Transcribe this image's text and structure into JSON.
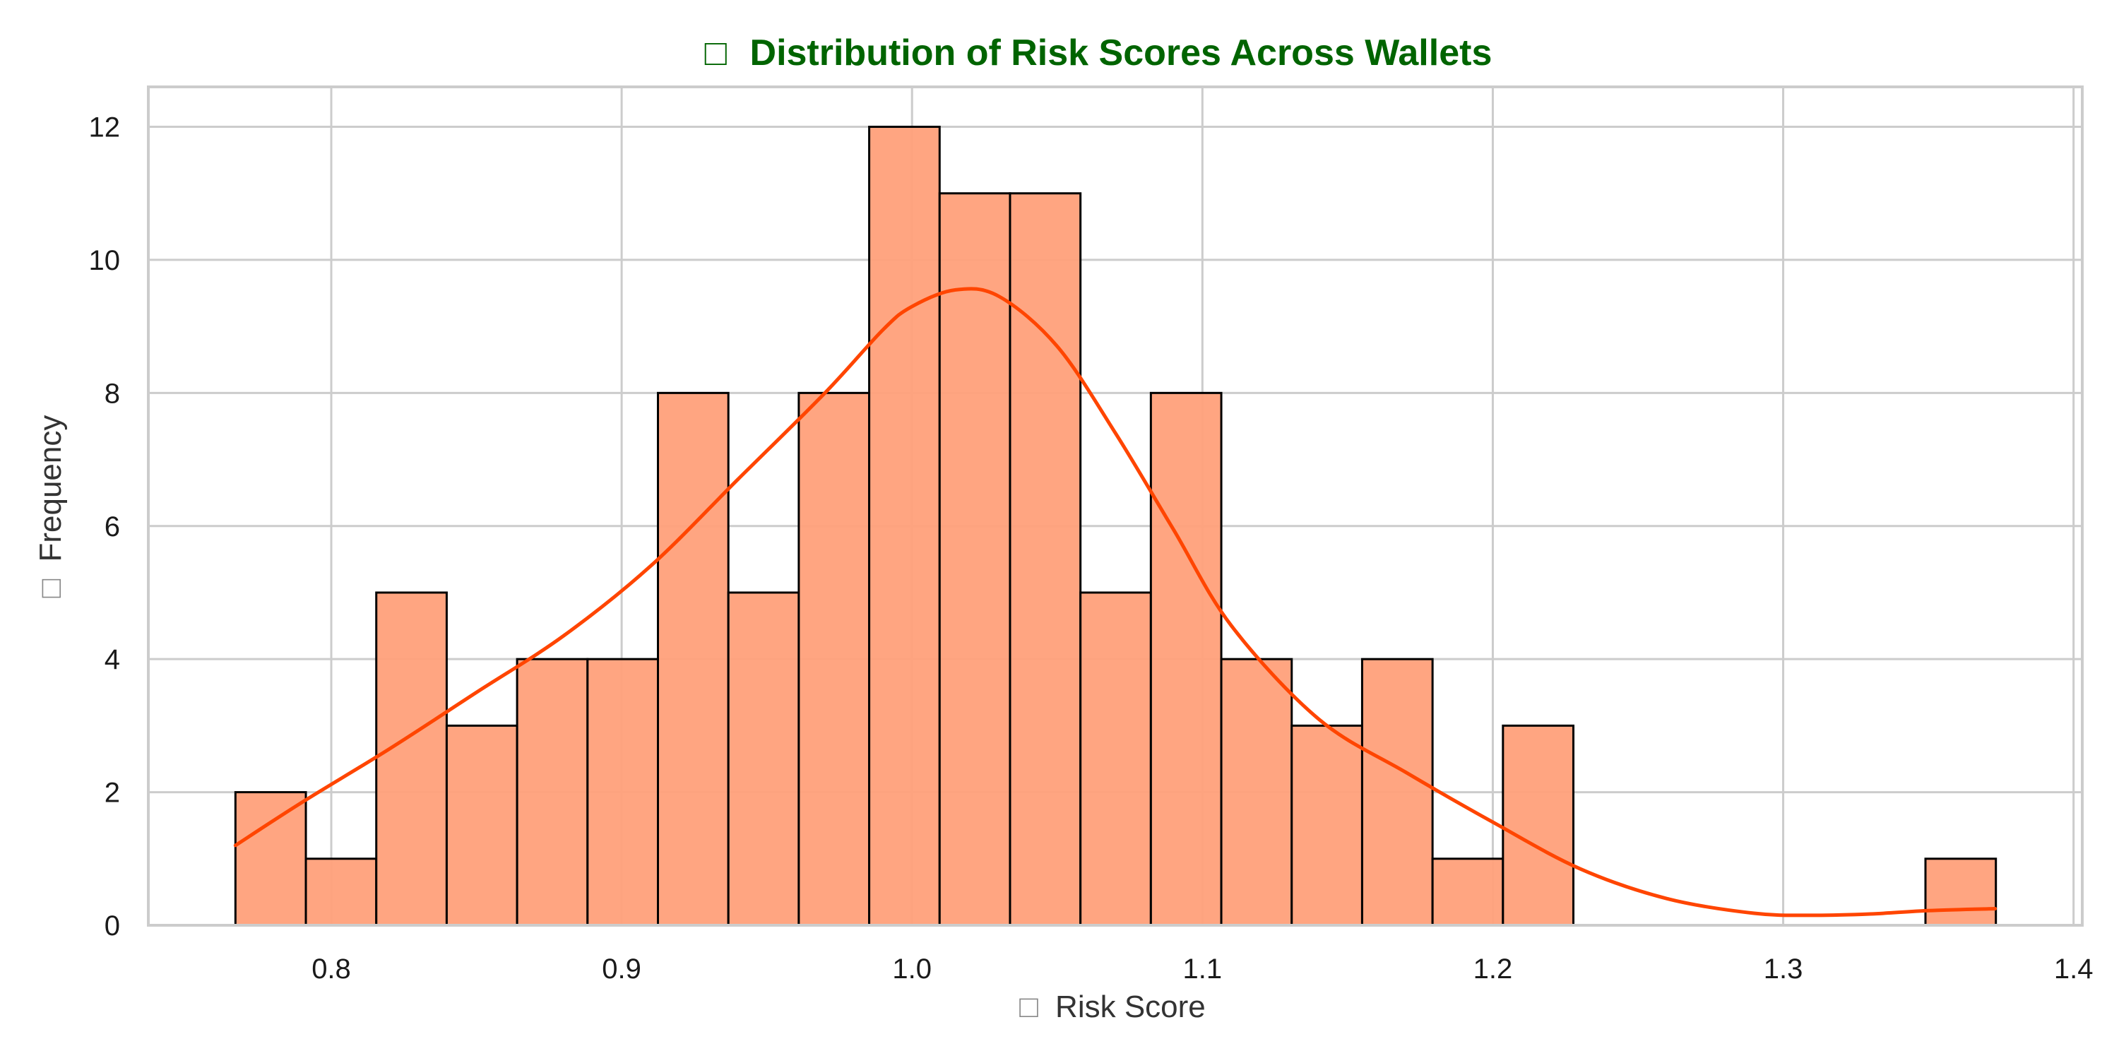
{
  "chart_data": {
    "type": "bar",
    "subtype": "histogram-with-kde",
    "title": "Distribution of Risk Scores Across Wallets",
    "title_icon": "□",
    "xlabel": "Risk Score",
    "xlabel_icon": "□",
    "ylabel": "Frequency",
    "ylabel_icon": "□",
    "xlim": [
      0.737,
      1.403
    ],
    "ylim": [
      0,
      12.6
    ],
    "xticks": [
      0.8,
      0.9,
      1.0,
      1.1,
      1.2,
      1.3,
      1.4
    ],
    "xtick_labels": [
      "0.8",
      "0.9",
      "1.0",
      "1.1",
      "1.2",
      "1.3",
      "1.4"
    ],
    "yticks": [
      0,
      2,
      4,
      6,
      8,
      10,
      12
    ],
    "ytick_labels": [
      "0",
      "2",
      "4",
      "6",
      "8",
      "10",
      "12"
    ],
    "grid": true,
    "bin_start": 0.767,
    "bin_width": 0.02425,
    "values": [
      2,
      1,
      5,
      3,
      4,
      4,
      8,
      5,
      8,
      12,
      11,
      11,
      5,
      8,
      4,
      3,
      4,
      1,
      3,
      0,
      0,
      0,
      0,
      0,
      1
    ],
    "kde": {
      "x": [
        0.767,
        0.79,
        0.82,
        0.85,
        0.88,
        0.91,
        0.94,
        0.97,
        0.99,
        1.0,
        1.015,
        1.03,
        1.05,
        1.07,
        1.09,
        1.11,
        1.14,
        1.17,
        1.2,
        1.23,
        1.26,
        1.29,
        1.31,
        1.33,
        1.35,
        1.373
      ],
      "y": [
        1.2,
        1.85,
        2.65,
        3.5,
        4.35,
        5.4,
        6.7,
        8.0,
        8.95,
        9.3,
        9.55,
        9.45,
        8.7,
        7.4,
        5.95,
        4.5,
        3.1,
        2.3,
        1.55,
        0.85,
        0.4,
        0.18,
        0.15,
        0.17,
        0.22,
        0.25
      ]
    },
    "colors": {
      "bar_fill": "#FFA07A",
      "bar_edge": "#000000",
      "kde_line": "#FF4500",
      "title": "#006400",
      "grid": "#cccccc",
      "frame": "#cccccc"
    }
  }
}
